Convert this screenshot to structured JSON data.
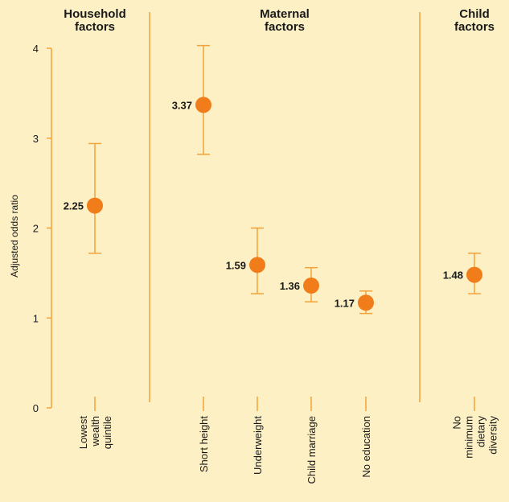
{
  "chart_data": {
    "type": "scatter",
    "ylabel": "Adjusted odds ratio",
    "ylim": [
      0,
      4
    ],
    "yticks": [
      0,
      1,
      2,
      3,
      4
    ],
    "colors": {
      "point": "#f07d1a",
      "errorbar": "#f2a23a",
      "divider": "#f2a23a",
      "background": "#fdf0c4"
    },
    "groups": [
      {
        "title_lines": [
          "Household",
          "factors"
        ]
      },
      {
        "title_lines": [
          "Maternal",
          "factors"
        ]
      },
      {
        "title_lines": [
          "Child",
          "factors"
        ]
      }
    ],
    "points": [
      {
        "group": 0,
        "category_lines": [
          "Lowest",
          "wealth",
          "quintile"
        ],
        "value": 2.25,
        "low": 1.72,
        "high": 2.94,
        "label": "2.25"
      },
      {
        "group": 1,
        "category_lines": [
          "Short height"
        ],
        "value": 3.37,
        "low": 2.82,
        "high": 4.03,
        "label": "3.37"
      },
      {
        "group": 1,
        "category_lines": [
          "Underweight"
        ],
        "value": 1.59,
        "low": 1.27,
        "high": 2.0,
        "label": "1.59"
      },
      {
        "group": 1,
        "category_lines": [
          "Child marriage"
        ],
        "value": 1.36,
        "low": 1.18,
        "high": 1.56,
        "label": "1.36"
      },
      {
        "group": 1,
        "category_lines": [
          "No education"
        ],
        "value": 1.17,
        "low": 1.05,
        "high": 1.3,
        "label": "1.17"
      },
      {
        "group": 2,
        "category_lines": [
          "No",
          "minimum",
          "dietary",
          "diversity"
        ],
        "value": 1.48,
        "low": 1.27,
        "high": 1.72,
        "label": "1.48"
      }
    ]
  }
}
